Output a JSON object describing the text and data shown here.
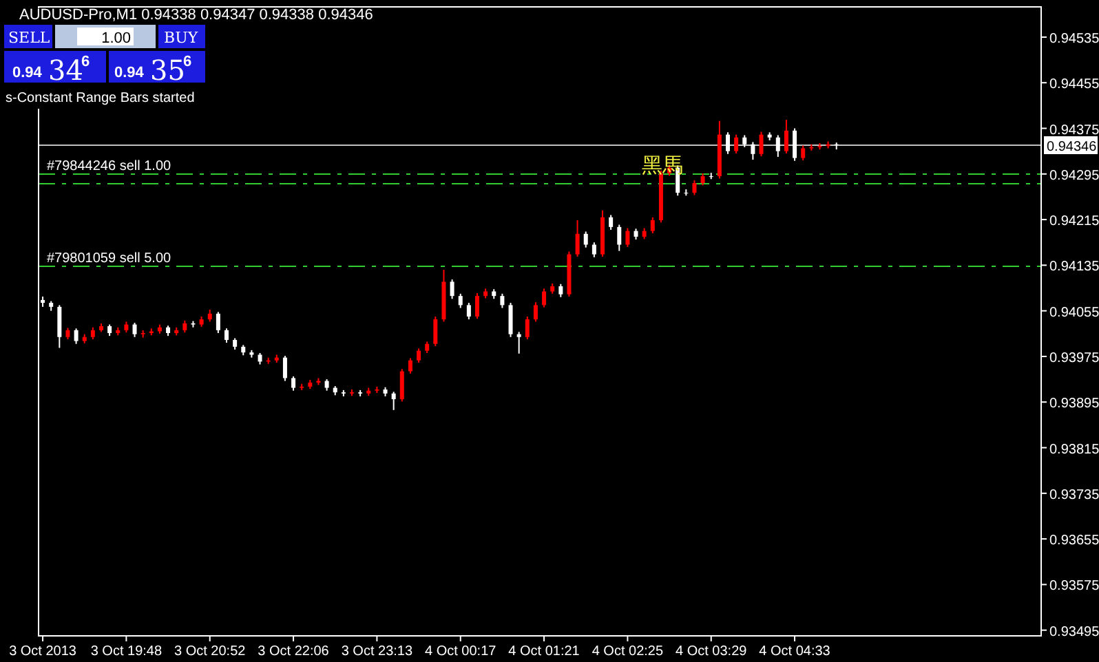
{
  "chart_data": {
    "type": "candlestick",
    "title": "AUDUSD-Pro,M1  0.94338 0.94347 0.94338 0.94346",
    "categories": [
      "3 Oct 2013",
      null,
      null,
      null,
      null,
      null,
      null,
      null,
      null,
      null,
      "3 Oct 19:48",
      null,
      null,
      null,
      null,
      null,
      null,
      null,
      null,
      null,
      "3 Oct 20:52",
      null,
      null,
      null,
      null,
      null,
      null,
      null,
      null,
      null,
      "3 Oct 22:06",
      null,
      null,
      null,
      null,
      null,
      null,
      null,
      null,
      null,
      "3 Oct 23:13",
      null,
      null,
      null,
      null,
      null,
      null,
      null,
      null,
      null,
      "4 Oct 00:17",
      null,
      null,
      null,
      null,
      null,
      null,
      null,
      null,
      null,
      "4 Oct 01:21",
      null,
      null,
      null,
      null,
      null,
      null,
      null,
      null,
      null,
      "4 Oct 02:25",
      null,
      null,
      null,
      null,
      null,
      null,
      null,
      null,
      null,
      "4 Oct 03:29",
      null,
      null,
      null,
      null,
      null,
      null,
      null,
      null,
      null,
      "4 Oct 04:33",
      null,
      null,
      null,
      null,
      null,
      null,
      null,
      null,
      null,
      null,
      null,
      null,
      null,
      null,
      null,
      null,
      null,
      null,
      null,
      null,
      null,
      null,
      null,
      null,
      null,
      null,
      null,
      null,
      null
    ],
    "ohlc": [
      [
        0.94074,
        0.9408,
        0.94062,
        0.94069
      ],
      [
        0.94069,
        0.94072,
        0.94055,
        0.94062
      ],
      [
        0.94062,
        0.94065,
        0.9399,
        0.94009
      ],
      [
        0.94009,
        0.94025,
        0.94005,
        0.94021
      ],
      [
        0.94021,
        0.94024,
        0.93997,
        0.94002
      ],
      [
        0.94002,
        0.94014,
        0.93998,
        0.94009
      ],
      [
        0.94009,
        0.94026,
        0.94005,
        0.94021
      ],
      [
        0.94021,
        0.94033,
        0.94018,
        0.94028
      ],
      [
        0.94028,
        0.94031,
        0.94011,
        0.94016
      ],
      [
        0.94016,
        0.94026,
        0.94012,
        0.94021
      ],
      [
        0.94021,
        0.94036,
        0.94017,
        0.94031
      ],
      [
        0.94031,
        0.94034,
        0.94009,
        0.94014
      ],
      [
        0.94014,
        0.94021,
        0.94008,
        0.94016
      ],
      [
        0.94016,
        0.94024,
        0.94012,
        0.94019
      ],
      [
        0.94019,
        0.94031,
        0.94015,
        0.94026
      ],
      [
        0.94026,
        0.94029,
        0.94011,
        0.94016
      ],
      [
        0.94016,
        0.94026,
        0.94012,
        0.94021
      ],
      [
        0.94021,
        0.94038,
        0.94017,
        0.94033
      ],
      [
        0.94033,
        0.94037,
        0.94026,
        0.94031
      ],
      [
        0.94031,
        0.94045,
        0.94027,
        0.9404
      ],
      [
        0.9404,
        0.94057,
        0.94036,
        0.9405
      ],
      [
        0.9405,
        0.94053,
        0.94016,
        0.94021
      ],
      [
        0.94021,
        0.94024,
        0.93999,
        0.94004
      ],
      [
        0.94004,
        0.94007,
        0.93987,
        0.93992
      ],
      [
        0.93992,
        0.93995,
        0.93977,
        0.93982
      ],
      [
        0.93982,
        0.93986,
        0.93973,
        0.93978
      ],
      [
        0.93978,
        0.93981,
        0.93961,
        0.93966
      ],
      [
        0.93966,
        0.93973,
        0.93962,
        0.93968
      ],
      [
        0.93968,
        0.93978,
        0.93964,
        0.93973
      ],
      [
        0.93973,
        0.93976,
        0.93932,
        0.93937
      ],
      [
        0.93937,
        0.9394,
        0.93915,
        0.9392
      ],
      [
        0.9392,
        0.93927,
        0.93916,
        0.93922
      ],
      [
        0.93922,
        0.93934,
        0.93918,
        0.93929
      ],
      [
        0.93929,
        0.93937,
        0.93925,
        0.93932
      ],
      [
        0.93932,
        0.93935,
        0.93915,
        0.9392
      ],
      [
        0.9392,
        0.93923,
        0.93907,
        0.93912
      ],
      [
        0.93912,
        0.93916,
        0.93905,
        0.9391
      ],
      [
        0.9391,
        0.93917,
        0.93906,
        0.93912
      ],
      [
        0.93912,
        0.93916,
        0.93905,
        0.9391
      ],
      [
        0.9391,
        0.9392,
        0.93906,
        0.93915
      ],
      [
        0.93915,
        0.93922,
        0.93911,
        0.93917
      ],
      [
        0.93917,
        0.93921,
        0.93905,
        0.9391
      ],
      [
        0.9391,
        0.93913,
        0.93881,
        0.939
      ],
      [
        0.939,
        0.93953,
        0.93896,
        0.93949
      ],
      [
        0.93949,
        0.93972,
        0.93945,
        0.93968
      ],
      [
        0.93968,
        0.93989,
        0.93964,
        0.93985
      ],
      [
        0.93985,
        0.94001,
        0.93981,
        0.93997
      ],
      [
        0.93997,
        0.94045,
        0.93993,
        0.9404
      ],
      [
        0.9404,
        0.94127,
        0.94036,
        0.94106
      ],
      [
        0.94106,
        0.9411,
        0.94076,
        0.94081
      ],
      [
        0.94081,
        0.94085,
        0.9406,
        0.94065
      ],
      [
        0.94065,
        0.94069,
        0.9404,
        0.94045
      ],
      [
        0.94045,
        0.94086,
        0.94041,
        0.94081
      ],
      [
        0.94081,
        0.94094,
        0.94077,
        0.94089
      ],
      [
        0.94089,
        0.94093,
        0.94076,
        0.94081
      ],
      [
        0.94081,
        0.94085,
        0.9406,
        0.94065
      ],
      [
        0.94065,
        0.94069,
        0.94009,
        0.94014
      ],
      [
        0.94014,
        0.94018,
        0.9398,
        0.94009
      ],
      [
        0.94009,
        0.94045,
        0.94005,
        0.9404
      ],
      [
        0.9404,
        0.9407,
        0.94036,
        0.94065
      ],
      [
        0.94065,
        0.94094,
        0.94061,
        0.94089
      ],
      [
        0.94089,
        0.94103,
        0.94085,
        0.94098
      ],
      [
        0.94098,
        0.94102,
        0.94079,
        0.94084
      ],
      [
        0.94084,
        0.94159,
        0.9408,
        0.94154
      ],
      [
        0.94154,
        0.94214,
        0.9415,
        0.9419
      ],
      [
        0.9419,
        0.94194,
        0.94166,
        0.94171
      ],
      [
        0.94171,
        0.94175,
        0.94149,
        0.94154
      ],
      [
        0.94154,
        0.94231,
        0.9415,
        0.94219
      ],
      [
        0.94219,
        0.94223,
        0.94197,
        0.94202
      ],
      [
        0.94202,
        0.94206,
        0.9416,
        0.94171
      ],
      [
        0.94171,
        0.942,
        0.94167,
        0.94195
      ],
      [
        0.94195,
        0.94199,
        0.9418,
        0.94185
      ],
      [
        0.94185,
        0.942,
        0.94181,
        0.94195
      ],
      [
        0.94195,
        0.94219,
        0.94191,
        0.94214
      ],
      [
        0.94214,
        0.94301,
        0.9421,
        0.94296
      ],
      [
        0.94296,
        0.94311,
        0.94292,
        0.94306
      ],
      [
        0.94306,
        0.9431,
        0.94257,
        0.94262
      ],
      [
        0.94262,
        0.94268,
        0.94257,
        0.94262
      ],
      [
        0.94262,
        0.94284,
        0.94258,
        0.94279
      ],
      [
        0.94279,
        0.94296,
        0.94275,
        0.94291
      ],
      [
        0.94291,
        0.94297,
        0.94286,
        0.94291
      ],
      [
        0.94291,
        0.94388,
        0.94287,
        0.94364
      ],
      [
        0.94364,
        0.94368,
        0.9433,
        0.94335
      ],
      [
        0.94335,
        0.94364,
        0.94331,
        0.94359
      ],
      [
        0.94359,
        0.94363,
        0.94342,
        0.94347
      ],
      [
        0.94347,
        0.94351,
        0.9432,
        0.9433
      ],
      [
        0.9433,
        0.94369,
        0.94326,
        0.94364
      ],
      [
        0.94364,
        0.94368,
        0.94354,
        0.94359
      ],
      [
        0.94359,
        0.94363,
        0.94325,
        0.94335
      ],
      [
        0.94335,
        0.9439,
        0.94331,
        0.94371
      ],
      [
        0.94371,
        0.94375,
        0.94318,
        0.94323
      ],
      [
        0.94323,
        0.94345,
        0.94319,
        0.9434
      ],
      [
        0.9434,
        0.94347,
        0.94336,
        0.94342
      ],
      [
        0.94342,
        0.94349,
        0.94338,
        0.94344
      ],
      [
        0.94344,
        0.94352,
        0.9434,
        0.94347
      ],
      [
        0.94347,
        0.9435,
        0.94338,
        0.94346
      ],
      null,
      null,
      null,
      null,
      null,
      null,
      null,
      null,
      null,
      null,
      null,
      null,
      null,
      null,
      null,
      null,
      null,
      null,
      null,
      null,
      null,
      null,
      null,
      null
    ],
    "colors": [
      "#ffffff",
      "#ffffff",
      "#ffffff",
      "#ff0000",
      "#ffffff",
      "#ff0000",
      "#ff0000",
      "#ff0000",
      "#ffffff",
      "#ff0000",
      "#ff0000",
      "#ffffff",
      "#ff0000",
      "#ff0000",
      "#ff0000",
      "#ffffff",
      "#ff0000",
      "#ff0000",
      "#ffffff",
      "#ff0000",
      "#ff0000",
      "#ffffff",
      "#ffffff",
      "#ffffff",
      "#ffffff",
      "#ffffff",
      "#ffffff",
      "#ff0000",
      "#ff0000",
      "#ffffff",
      "#ffffff",
      "#ff0000",
      "#ff0000",
      "#ff0000",
      "#ffffff",
      "#ffffff",
      "#ffffff",
      "#ff0000",
      "#ffffff",
      "#ff0000",
      "#ff0000",
      "#ffffff",
      "#ffffff",
      "#ff0000",
      "#ff0000",
      "#ff0000",
      "#ff0000",
      "#ff0000",
      "#ff0000",
      "#ffffff",
      "#ffffff",
      "#ffffff",
      "#ff0000",
      "#ff0000",
      "#ffffff",
      "#ffffff",
      "#ffffff",
      "#ffffff",
      "#ff0000",
      "#ff0000",
      "#ff0000",
      "#ff0000",
      "#ffffff",
      "#ff0000",
      "#ff0000",
      "#ffffff",
      "#ffffff",
      "#ff0000",
      "#ffffff",
      "#ffffff",
      "#ff0000",
      "#ffffff",
      "#ff0000",
      "#ff0000",
      "#ff0000",
      "#ff0000",
      "#ffffff",
      "#ffffff",
      "#ff0000",
      "#ff0000",
      "#ffffff",
      "#ff0000",
      "#ffffff",
      "#ff0000",
      "#ffffff",
      "#ffffff",
      "#ff0000",
      "#ffffff",
      "#ffffff",
      "#ff0000",
      "#ffffff",
      "#ff0000",
      "#ff0000",
      "#ff0000",
      "#ff0000",
      "#ffffff",
      null,
      null,
      null,
      null,
      null,
      null,
      null,
      null,
      null,
      null,
      null,
      null,
      null,
      null,
      null,
      null,
      null,
      null,
      null,
      null,
      null,
      null,
      null,
      null
    ],
    "ylim": [
      0.93485,
      0.94588
    ],
    "yticks": [
      0.94535,
      0.94455,
      0.94375,
      0.94295,
      0.94215,
      0.94135,
      0.94055,
      0.93975,
      0.93895,
      0.93815,
      0.93735,
      0.93655,
      0.93575,
      0.93495
    ],
    "ref_lines": [
      {
        "axis": "y",
        "value": 0.94346,
        "label": "0.94346",
        "color": "#c0c0c0",
        "line_style": "solid"
      },
      {
        "axis": "y",
        "value": 0.94295,
        "label": "#79844246 sell 1.00",
        "color": "#32cd32",
        "line_style": "dashed"
      },
      {
        "axis": "y",
        "value": 0.9428,
        "color": "#32cd32",
        "line_style": "dashed"
      },
      {
        "axis": "y",
        "value": 0.94135,
        "label": "#79801059 sell 5.00",
        "color": "#32cd32",
        "line_style": "dashed"
      }
    ],
    "annotations": [
      "SELL",
      "1.00",
      "BUY",
      "0.94",
      "34",
      "6",
      "0.94",
      "35",
      "6",
      "s-Constant Range Bars started",
      "黑馬"
    ]
  }
}
